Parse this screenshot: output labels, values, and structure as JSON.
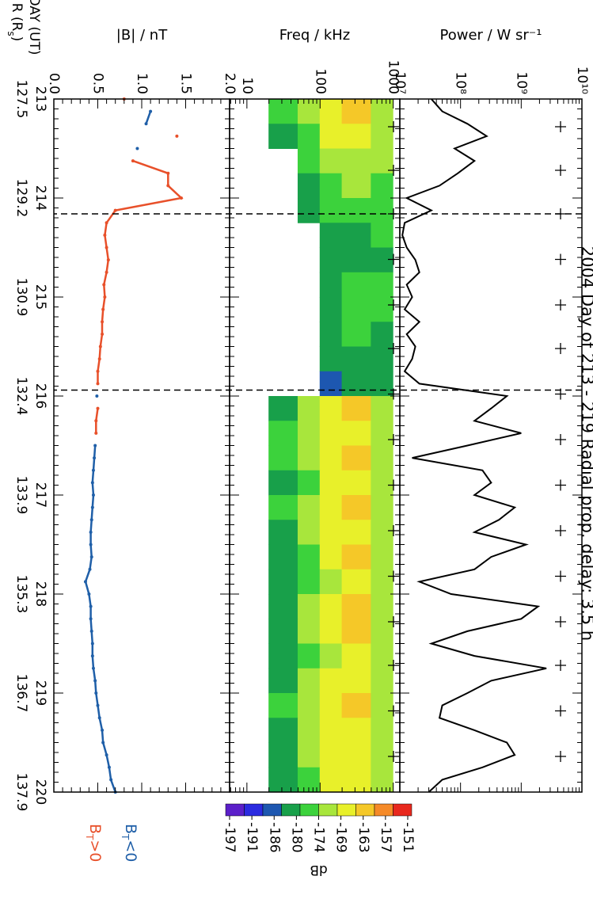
{
  "figure": {
    "title": "2004 Day of 213 - 219  Radial prop. delay: 3.5 h",
    "x": {
      "xlim": [
        213,
        220
      ],
      "xticks": [
        213,
        214,
        215,
        216,
        217,
        218,
        219,
        220
      ],
      "r_ticks": [
        127.5,
        129.2,
        130.9,
        132.4,
        133.9,
        135.3,
        136.7,
        137.9
      ],
      "day_label": "DAY (UT)",
      "r_label": "R (Rs)"
    },
    "boundaries": [
      214.16,
      215.94
    ],
    "markers": [
      213.28,
      213.72,
      214.16,
      214.62,
      215.08,
      215.52,
      215.98,
      216.44,
      216.9,
      217.36,
      217.82,
      218.28,
      218.72,
      219.18,
      219.64
    ]
  },
  "chart_data": [
    {
      "type": "line",
      "ylabel": "Power / W sr⁻¹",
      "log": true,
      "color": "#000000",
      "ylim": [
        10000000,
        10000000000
      ],
      "yticks": [
        {
          "value": 10000000,
          "label": "10⁷"
        },
        {
          "value": 100000000,
          "label": "10⁸"
        },
        {
          "value": 1000000000,
          "label": "10⁹"
        },
        {
          "value": 10000000000,
          "label": "10¹⁰"
        }
      ],
      "x": [
        213,
        213.125,
        213.25,
        213.375,
        213.5,
        213.625,
        213.75,
        213.875,
        214,
        214.125,
        214.25,
        214.375,
        214.5,
        214.625,
        214.75,
        214.875,
        215,
        215.125,
        215.25,
        215.375,
        215.5,
        215.625,
        215.75,
        215.875,
        216,
        216.125,
        216.25,
        216.375,
        216.5,
        216.625,
        216.75,
        216.875,
        217,
        217.125,
        217.25,
        217.375,
        217.5,
        217.625,
        217.75,
        217.875,
        218,
        218.125,
        218.25,
        218.375,
        218.5,
        218.625,
        218.75,
        218.875,
        219,
        219.125,
        219.25,
        219.375,
        219.5,
        219.625,
        219.75,
        219.875,
        220
      ],
      "values": [
        33000000.0,
        50000000.0,
        130000000.0,
        270000000.0,
        80000000.0,
        170000000.0,
        90000000.0,
        45000000.0,
        13000000.0,
        33000000.0,
        12000000.0,
        11000000.0,
        13000000.0,
        18000000.0,
        21000000.0,
        13000000.0,
        16000000.0,
        12000000.0,
        21000000.0,
        13000000.0,
        18000000.0,
        16000000.0,
        12000000.0,
        21000000.0,
        580000000.0,
        320000000.0,
        170000000.0,
        1000000000.0,
        130000000.0,
        16000000.0,
        230000000.0,
        320000000.0,
        170000000.0,
        780000000.0,
        430000000.0,
        170000000.0,
        1200000000.0,
        320000000.0,
        170000000.0,
        21000000.0,
        70000000.0,
        1900000000.0,
        1000000000.0,
        130000000.0,
        33000000.0,
        170000000.0,
        2600000000.0,
        320000000.0,
        130000000.0,
        50000000.0,
        45000000.0,
        170000000.0,
        580000000.0,
        780000000.0,
        230000000.0,
        50000000.0,
        30000000.0
      ]
    },
    {
      "type": "heatmap",
      "ylabel": "Freq / kHz",
      "log": true,
      "ylim": [
        5.8,
        1230
      ],
      "yticks": [
        10,
        100,
        1000
      ],
      "x_edges": [
        213,
        213.25,
        213.5,
        213.75,
        214,
        214.25,
        214.5,
        214.75,
        215,
        215.25,
        215.5,
        215.75,
        216,
        216.25,
        216.5,
        216.75,
        217,
        217.25,
        217.5,
        217.75,
        218,
        218.25,
        218.5,
        218.75,
        219,
        219.25,
        219.5,
        219.75,
        220
      ],
      "y_edges": [
        20,
        50,
        100,
        200,
        500,
        1000
      ],
      "values": [
        [
          -180,
          -172,
          -165,
          -163,
          -170
        ],
        [
          -186,
          -175,
          -168,
          -166,
          -172
        ],
        [
          null,
          -180,
          -172,
          -170,
          -174
        ],
        [
          null,
          -186,
          -178,
          -172,
          -176
        ],
        [
          null,
          -186,
          -180,
          -176,
          -178
        ],
        [
          null,
          null,
          -186,
          -183,
          -180
        ],
        [
          null,
          null,
          -186,
          -186,
          -183
        ],
        [
          null,
          null,
          -183,
          -180,
          -180
        ],
        [
          null,
          null,
          -183,
          -178,
          -180
        ],
        [
          null,
          null,
          -186,
          -180,
          -183
        ],
        [
          null,
          null,
          -186,
          -183,
          -183
        ],
        [
          null,
          null,
          -191,
          -186,
          -186
        ],
        [
          -186,
          -172,
          -165,
          -163,
          -172
        ],
        [
          -180,
          -174,
          -168,
          -165,
          -172
        ],
        [
          -180,
          -172,
          -166,
          -163,
          -170
        ],
        [
          -186,
          -175,
          -169,
          -166,
          -172
        ],
        [
          -180,
          -172,
          -165,
          -163,
          -170
        ],
        [
          -183,
          -174,
          -168,
          -166,
          -172
        ],
        [
          -186,
          -176,
          -166,
          -163,
          -172
        ],
        [
          -186,
          -178,
          -170,
          -168,
          -174
        ],
        [
          -183,
          -172,
          -165,
          -163,
          -170
        ],
        [
          -186,
          -174,
          -166,
          -163,
          -172
        ],
        [
          -186,
          -176,
          -170,
          -168,
          -174
        ],
        [
          -183,
          -174,
          -168,
          -166,
          -172
        ],
        [
          -180,
          -170,
          -165,
          -163,
          -170
        ],
        [
          -183,
          -172,
          -166,
          -165,
          -172
        ],
        [
          -183,
          -172,
          -166,
          -165,
          -172
        ],
        [
          -186,
          -176,
          -169,
          -168,
          -174
        ]
      ],
      "colorbar": {
        "label": "dB",
        "ticks": [
          -151,
          -157,
          -163,
          -169,
          -174,
          -180,
          -186,
          -191,
          -197
        ],
        "colors": [
          "#5b1fc9",
          "#2b2be0",
          "#1d57b0",
          "#18a04a",
          "#3cd23c",
          "#a8e63c",
          "#e8f02a",
          "#f5c828",
          "#f58a28",
          "#e8281e"
        ]
      }
    },
    {
      "type": "scatter",
      "ylabel": "|B| / nT",
      "ylim": [
        0,
        2
      ],
      "yticks": [
        {
          "value": 0,
          "label": "0.0"
        },
        0.5,
        {
          "value": 1,
          "label": "1.0"
        },
        1.5,
        {
          "value": 2,
          "label": "2.0"
        }
      ],
      "x": [
        213,
        213.125,
        213.25,
        213.375,
        213.5,
        213.625,
        213.75,
        213.875,
        214,
        214.125,
        214.25,
        214.375,
        214.5,
        214.625,
        214.75,
        214.875,
        215,
        215.125,
        215.25,
        215.375,
        215.5,
        215.625,
        215.75,
        215.875,
        216,
        216.125,
        216.25,
        216.375,
        216.5,
        216.625,
        216.75,
        216.875,
        217,
        217.125,
        217.25,
        217.375,
        217.5,
        217.625,
        217.75,
        217.875,
        218,
        218.125,
        218.25,
        218.375,
        218.5,
        218.625,
        218.75,
        218.875,
        219,
        219.125,
        219.25,
        219.375,
        219.5,
        219.625,
        219.75,
        219.875,
        220
      ],
      "series": [
        {
          "name": "BT<0",
          "color": "#1f5fa8",
          "values": [
            null,
            1.1,
            1.05,
            null,
            0.95,
            null,
            null,
            null,
            null,
            null,
            null,
            null,
            null,
            null,
            null,
            null,
            null,
            null,
            null,
            null,
            null,
            null,
            null,
            null,
            0.49,
            null,
            null,
            null,
            0.47,
            0.46,
            0.45,
            0.44,
            0.45,
            0.44,
            0.43,
            0.42,
            0.42,
            0.43,
            0.41,
            0.36,
            0.4,
            0.42,
            0.42,
            0.43,
            0.44,
            0.44,
            0.45,
            0.47,
            0.48,
            0.5,
            0.52,
            0.55,
            0.56,
            0.6,
            0.63,
            0.65,
            0.7
          ]
        },
        {
          "name": "BT>0",
          "color": "#e8502a",
          "values": [
            0.8,
            null,
            null,
            1.4,
            null,
            0.9,
            1.3,
            1.3,
            1.45,
            0.7,
            0.6,
            0.58,
            0.6,
            0.62,
            0.6,
            0.57,
            0.58,
            0.56,
            0.55,
            0.55,
            0.53,
            0.52,
            0.5,
            0.5,
            null,
            0.5,
            0.48,
            0.48,
            null,
            null,
            null,
            null,
            null,
            null,
            null,
            null,
            null,
            null,
            null,
            null,
            null,
            null,
            null,
            null,
            null,
            null,
            null,
            null,
            null,
            null,
            null,
            null,
            null,
            null,
            null,
            null,
            null
          ]
        }
      ]
    }
  ]
}
